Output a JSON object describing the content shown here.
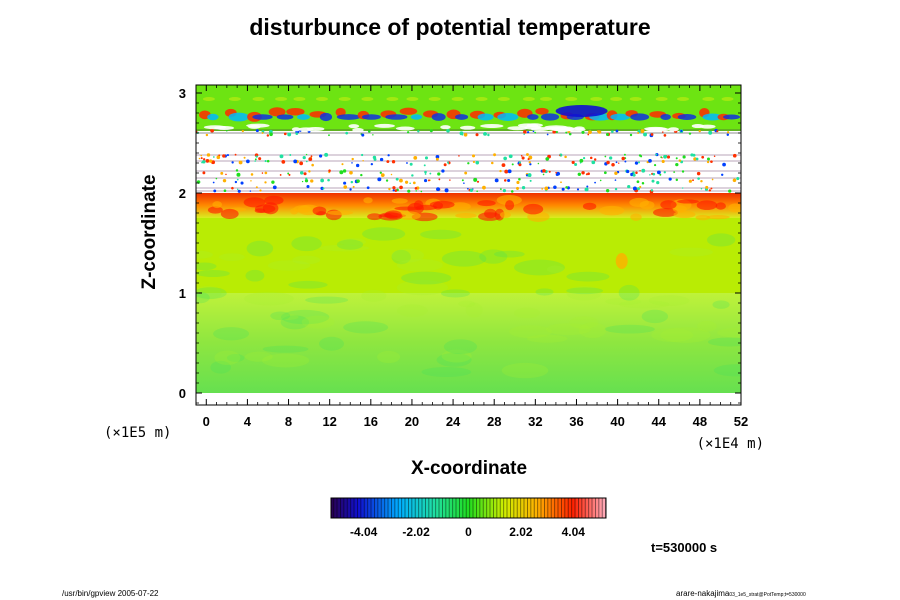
{
  "chart_data": {
    "type": "heatmap",
    "title": "disturbunce of potential temperature",
    "xlabel": "X-coordinate",
    "ylabel": "Z-coordinate",
    "x_scale_note": "(×1E4 m)",
    "y_scale_note": "(×1E5 m)",
    "xlim": [
      -1,
      52
    ],
    "ylim": [
      -0.12,
      3.08
    ],
    "x_ticks": [
      0,
      4,
      8,
      12,
      16,
      20,
      24,
      28,
      32,
      36,
      40,
      44,
      48,
      52
    ],
    "y_ticks": [
      0,
      1,
      2,
      3
    ],
    "colorbar": {
      "min": -5.3,
      "max": 5.3,
      "tick_values": [
        -4.04,
        -2.02,
        0,
        2.02,
        4.04
      ],
      "tick_labels": [
        "-4.04",
        "-2.02",
        "0",
        "2.02",
        "4.04"
      ]
    },
    "field_regions": [
      {
        "z_range": [
          0,
          1.0
        ],
        "value": 0.3
      },
      {
        "z_range": [
          1.0,
          1.75
        ],
        "value": 1.2
      },
      {
        "z_range": [
          1.75,
          2.0
        ],
        "value": 4.0
      },
      {
        "z_range": [
          2.0,
          2.62
        ],
        "value": null
      },
      {
        "z_range": [
          2.62,
          3.08
        ],
        "value": 0.6
      }
    ],
    "time_label": "t=530000 s",
    "footer_left": "/usr/bin/gpview 2005-07-22",
    "footer_right": "arare-nakajima",
    "footer_right_small": "03_1e5_strat@PotTemp;t=530000"
  }
}
